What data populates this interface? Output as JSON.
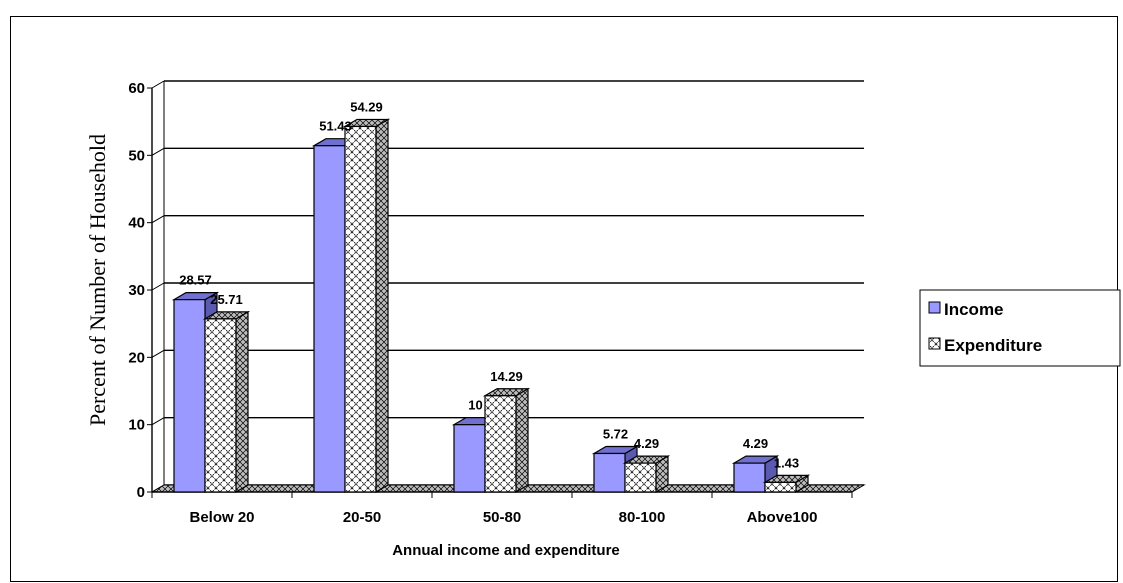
{
  "chart_data": {
    "type": "bar",
    "title": "",
    "xlabel": "Annual income and expenditure",
    "ylabel": "Percent of  Number of Household",
    "categories": [
      "Below 20",
      "20-50",
      "50-80",
      "80-100",
      "Above100"
    ],
    "series": [
      {
        "name": "Income",
        "values": [
          28.57,
          51.43,
          10,
          5.72,
          4.29
        ],
        "data_labels": [
          "28.57",
          "51.43",
          "10",
          "5.72",
          "4.29"
        ],
        "color": "#9999FF"
      },
      {
        "name": "Expenditure",
        "values": [
          25.71,
          54.29,
          14.29,
          4.29,
          1.43
        ],
        "data_labels": [
          "25.71",
          "54.29",
          "14.29",
          "4.29",
          "1.43"
        ],
        "color": "#FFFFFF",
        "pattern": "diagonal-crosshatch"
      }
    ],
    "ylim": [
      0,
      60
    ],
    "yticks": [
      0,
      10,
      20,
      30,
      40,
      50,
      60
    ],
    "grid": true,
    "legend_position": "right",
    "style": "3d-clustered-column"
  }
}
